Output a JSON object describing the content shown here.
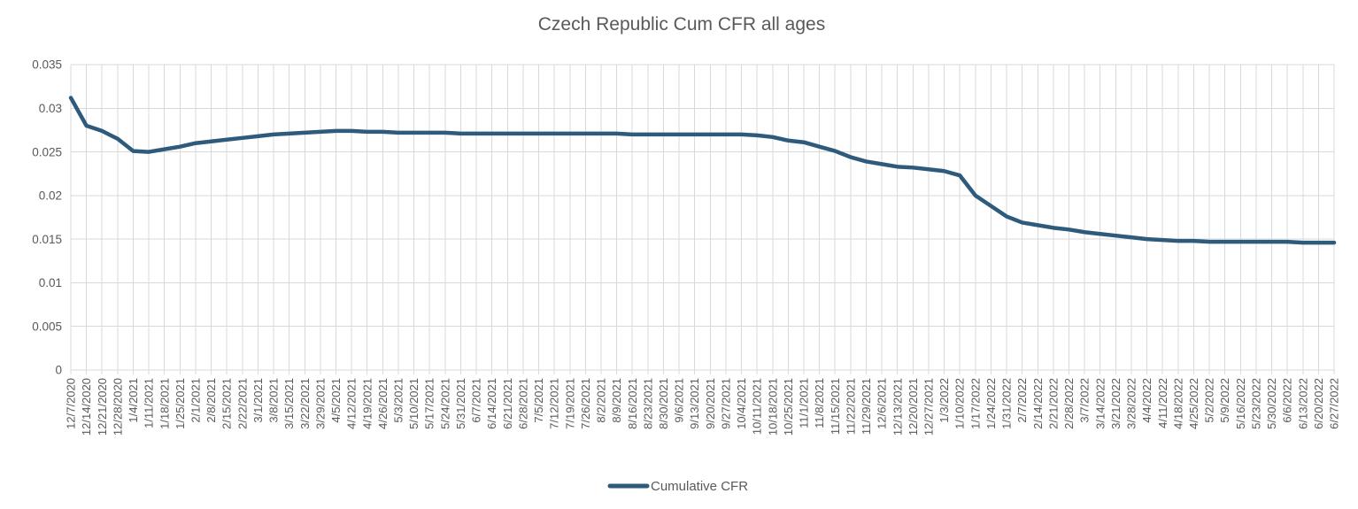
{
  "colors": {
    "line": "#2E5B7C",
    "axis_text": "#595959",
    "gridline": "#D9D9D9",
    "background": "#FFFFFF"
  },
  "legend": {
    "label": "Cumulative CFR"
  },
  "chart_data": {
    "type": "line",
    "title": "Czech Republic Cum CFR all ages",
    "xlabel": "",
    "ylabel": "",
    "ylim": [
      0,
      0.035
    ],
    "ytick_labels": [
      "0",
      "0.005",
      "0.01",
      "0.015",
      "0.02",
      "0.025",
      "0.03",
      "0.035"
    ],
    "grid": "on",
    "legend_position": "bottom",
    "x_label_rotation": -90,
    "x": [
      "12/7/2020",
      "12/14/2020",
      "12/21/2020",
      "12/28/2020",
      "1/4/2021",
      "1/11/2021",
      "1/18/2021",
      "1/25/2021",
      "2/1/2021",
      "2/8/2021",
      "2/15/2021",
      "2/22/2021",
      "3/1/2021",
      "3/8/2021",
      "3/15/2021",
      "3/22/2021",
      "3/29/2021",
      "4/5/2021",
      "4/12/2021",
      "4/19/2021",
      "4/26/2021",
      "5/3/2021",
      "5/10/2021",
      "5/17/2021",
      "5/24/2021",
      "5/31/2021",
      "6/7/2021",
      "6/14/2021",
      "6/21/2021",
      "6/28/2021",
      "7/5/2021",
      "7/12/2021",
      "7/19/2021",
      "7/26/2021",
      "8/2/2021",
      "8/9/2021",
      "8/16/2021",
      "8/23/2021",
      "8/30/2021",
      "9/6/2021",
      "9/13/2021",
      "9/20/2021",
      "9/27/2021",
      "10/4/2021",
      "10/11/2021",
      "10/18/2021",
      "10/25/2021",
      "11/1/2021",
      "11/8/2021",
      "11/15/2021",
      "11/22/2021",
      "11/29/2021",
      "12/6/2021",
      "12/13/2021",
      "12/20/2021",
      "12/27/2021",
      "1/3/2022",
      "1/10/2022",
      "1/17/2022",
      "1/24/2022",
      "1/31/2022",
      "2/7/2022",
      "2/14/2022",
      "2/21/2022",
      "2/28/2022",
      "3/7/2022",
      "3/14/2022",
      "3/21/2022",
      "3/28/2022",
      "4/4/2022",
      "4/11/2022",
      "4/18/2022",
      "4/25/2022",
      "5/2/2022",
      "5/9/2022",
      "5/16/2022",
      "5/23/2022",
      "5/30/2022",
      "6/6/2022",
      "6/13/2022",
      "6/20/2022",
      "6/27/2022"
    ],
    "series": [
      {
        "name": "Cumulative CFR",
        "values": [
          0.0312,
          0.028,
          0.0274,
          0.0265,
          0.0251,
          0.025,
          0.0253,
          0.0256,
          0.026,
          0.0262,
          0.0264,
          0.0266,
          0.0268,
          0.027,
          0.0271,
          0.0272,
          0.0273,
          0.0274,
          0.0274,
          0.0273,
          0.0273,
          0.0272,
          0.0272,
          0.0272,
          0.0272,
          0.0271,
          0.0271,
          0.0271,
          0.0271,
          0.0271,
          0.0271,
          0.0271,
          0.0271,
          0.0271,
          0.0271,
          0.0271,
          0.027,
          0.027,
          0.027,
          0.027,
          0.027,
          0.027,
          0.027,
          0.027,
          0.0269,
          0.0267,
          0.0263,
          0.0261,
          0.0256,
          0.0251,
          0.0244,
          0.0239,
          0.0236,
          0.0233,
          0.0232,
          0.023,
          0.0228,
          0.0223,
          0.02,
          0.0188,
          0.0176,
          0.0169,
          0.0166,
          0.0163,
          0.0161,
          0.0158,
          0.0156,
          0.0154,
          0.0152,
          0.015,
          0.0149,
          0.0148,
          0.0148,
          0.0147,
          0.0147,
          0.0147,
          0.0147,
          0.0147,
          0.0147,
          0.0146,
          0.0146,
          0.0146
        ]
      }
    ]
  }
}
